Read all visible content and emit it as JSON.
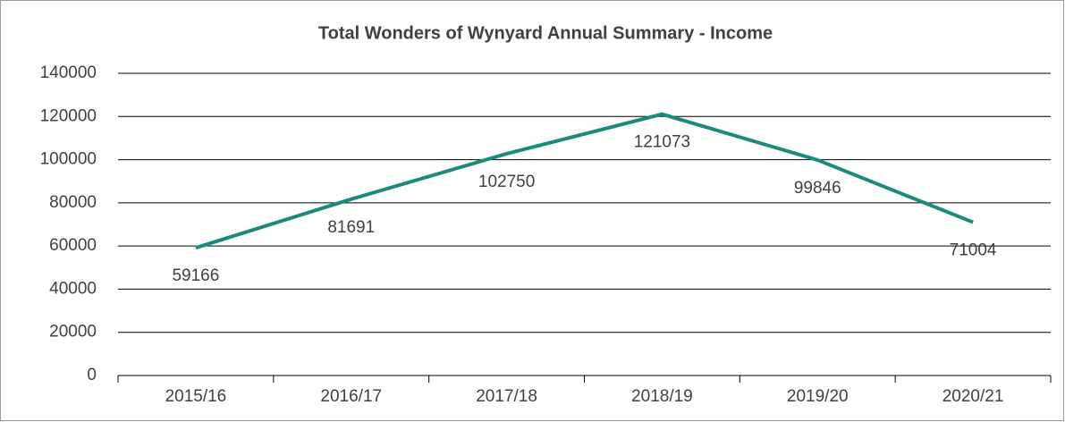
{
  "chart_data": {
    "type": "line",
    "title": "Total Wonders of Wynyard Annual Summary - Income",
    "categories": [
      "2015/16",
      "2016/17",
      "2017/18",
      "2018/19",
      "2019/20",
      "2020/21"
    ],
    "series": [
      {
        "name": "Income",
        "color": "#1a8a7e",
        "values": [
          59166,
          81691,
          102750,
          121073,
          99846,
          71004
        ]
      }
    ],
    "ylim": [
      0,
      140000
    ],
    "yticks": [
      0,
      20000,
      40000,
      60000,
      80000,
      100000,
      120000,
      140000
    ],
    "grid": true,
    "data_labels": true
  }
}
